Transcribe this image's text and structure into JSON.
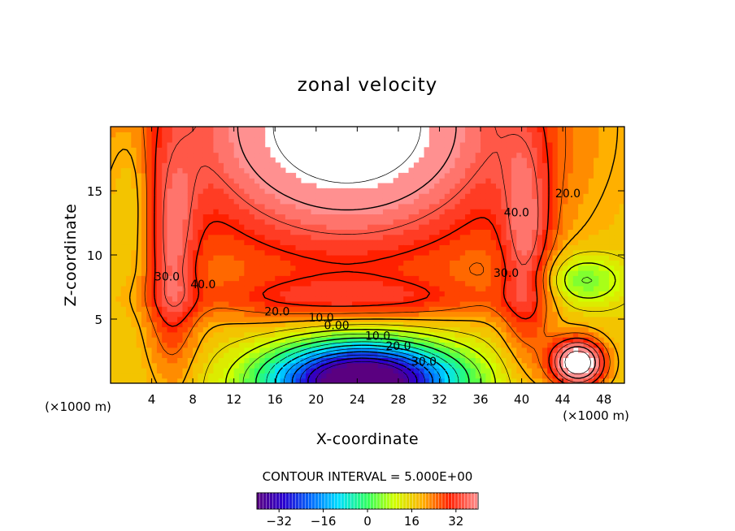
{
  "chart_data": {
    "type": "heatmap",
    "title": "zonal velocity",
    "xlabel": "X-coordinate",
    "ylabel": "Z-coordinate",
    "x_units": "(×1000 m)",
    "xlim": [
      0,
      50
    ],
    "ylim": [
      0,
      20
    ],
    "x_ticks": [
      4,
      8,
      12,
      16,
      20,
      24,
      28,
      32,
      36,
      40,
      44,
      48
    ],
    "y_ticks": [
      5,
      10,
      15
    ],
    "contour_interval_text": "CONTOUR INTERVAL = 5.000E+00",
    "contour_interval": 5.0,
    "contour_labels": [
      {
        "text": "40.0",
        "x": 9.0,
        "z": 7.4
      },
      {
        "text": "30.0",
        "x": 5.5,
        "z": 8.0
      },
      {
        "text": "20.0",
        "x": 16.2,
        "z": 5.3
      },
      {
        "text": "10.0",
        "x": 20.5,
        "z": 4.8
      },
      {
        "text": "0.00",
        "x": 22.0,
        "z": 4.2
      },
      {
        "text": "10.0",
        "x": 26.0,
        "z": 3.4
      },
      {
        "text": "20.0",
        "x": 28.0,
        "z": 2.6
      },
      {
        "text": "30.0",
        "x": 30.5,
        "z": 1.4
      },
      {
        "text": "30.0",
        "x": 38.5,
        "z": 8.3
      },
      {
        "text": "40.0",
        "x": 39.5,
        "z": 13.0
      },
      {
        "text": "20.0",
        "x": 44.5,
        "z": 14.5
      }
    ],
    "colorbar": {
      "min": -40,
      "max": 40,
      "ticks": [
        -32,
        -16,
        0,
        16,
        32
      ],
      "tick_labels": [
        "−32",
        "−16",
        "0",
        "16",
        "32"
      ]
    },
    "notes": "Values exceeding the color range (above ~45) are left white."
  }
}
